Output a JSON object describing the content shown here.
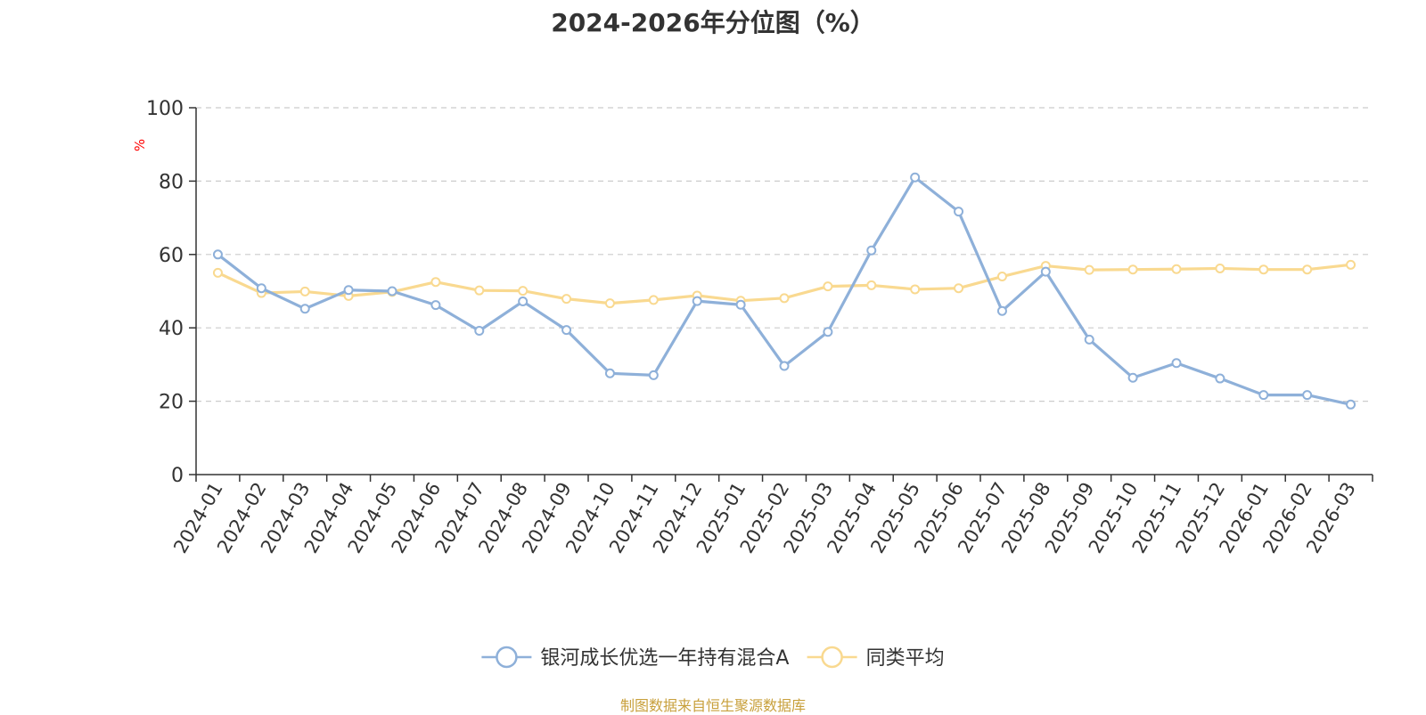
{
  "chart_data": {
    "type": "line",
    "title": "2024-2026年分位图（%）",
    "ylabel": "%",
    "xlabel": "",
    "ylim": [
      0,
      100
    ],
    "yticks": [
      0,
      20,
      40,
      60,
      80,
      100
    ],
    "grid": true,
    "legend_position": "bottom",
    "categories": [
      "2024-01",
      "2024-02",
      "2024-03",
      "2024-04",
      "2024-05",
      "2024-06",
      "2024-07",
      "2024-08",
      "2024-09",
      "2024-10",
      "2024-11",
      "2024-12",
      "2025-01",
      "2025-02",
      "2025-03",
      "2025-04",
      "2025-05",
      "2025-06",
      "2025-07",
      "2025-08",
      "2025-09",
      "2025-10",
      "2025-11",
      "2025-12",
      "2026-01",
      "2026-02",
      "2026-03"
    ],
    "series": [
      {
        "name": "银河成长优选一年持有混合A",
        "color": "#8eb0d9",
        "values": [
          60.0,
          50.8,
          45.2,
          50.3,
          50.0,
          46.2,
          39.2,
          47.2,
          39.4,
          27.6,
          27.1,
          47.3,
          46.3,
          29.6,
          38.9,
          61.1,
          81.0,
          71.7,
          44.6,
          55.3,
          36.8,
          26.4,
          30.4,
          26.2,
          21.7,
          21.7,
          19.1
        ]
      },
      {
        "name": "同类平均",
        "color": "#f9d990",
        "values": [
          55.0,
          49.5,
          49.9,
          48.7,
          49.8,
          52.5,
          50.2,
          50.1,
          47.9,
          46.7,
          47.6,
          48.8,
          47.4,
          48.1,
          51.3,
          51.6,
          50.5,
          50.8,
          54.0,
          56.9,
          55.8,
          55.9,
          56.0,
          56.2,
          55.9,
          55.9,
          57.2
        ]
      }
    ]
  },
  "footer": {
    "credit": "制图数据来自恒生聚源数据库"
  }
}
